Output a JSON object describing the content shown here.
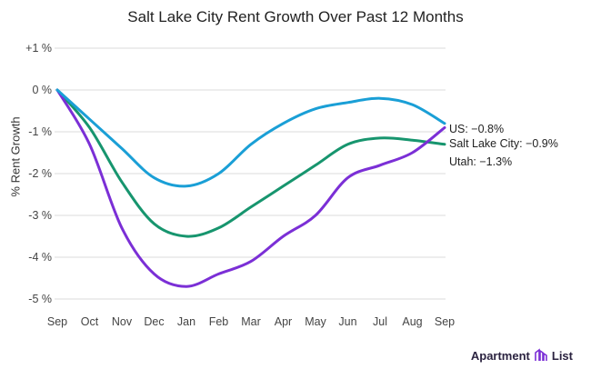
{
  "chart_data": {
    "type": "line",
    "title": "Salt Lake City Rent Growth Over Past 12 Months",
    "xlabel": "",
    "ylabel": "% Rent Growth",
    "categories": [
      "Sep",
      "Oct",
      "Nov",
      "Dec",
      "Jan",
      "Feb",
      "Mar",
      "Apr",
      "May",
      "Jun",
      "Jul",
      "Aug",
      "Sep"
    ],
    "y_ticks": [
      "+1 %",
      "0 %",
      "-1 %",
      "-2 %",
      "-3 %",
      "-4 %",
      "-5 %"
    ],
    "ylim": [
      -5,
      1
    ],
    "grid": true,
    "series": [
      {
        "name": "US",
        "color": "#1a9fd6",
        "end_label": "US: −0.8%",
        "values": [
          0,
          -0.7,
          -1.4,
          -2.1,
          -2.3,
          -2.0,
          -1.3,
          -0.8,
          -0.45,
          -0.3,
          -0.2,
          -0.35,
          -0.8
        ]
      },
      {
        "name": "Salt Lake City",
        "color": "#7b2fd6",
        "end_label": "Salt Lake City: −0.9%",
        "values": [
          0,
          -1.3,
          -3.3,
          -4.4,
          -4.7,
          -4.4,
          -4.1,
          -3.5,
          -3.0,
          -2.1,
          -1.8,
          -1.5,
          -0.9
        ]
      },
      {
        "name": "Utah",
        "color": "#17956e",
        "end_label": "Utah: −1.3%",
        "values": [
          0,
          -0.9,
          -2.2,
          -3.2,
          -3.5,
          -3.3,
          -2.8,
          -2.3,
          -1.8,
          -1.3,
          -1.15,
          -1.2,
          -1.3
        ]
      }
    ]
  },
  "branding": {
    "logo_text_1": "Apartment",
    "logo_text_2": "List"
  }
}
